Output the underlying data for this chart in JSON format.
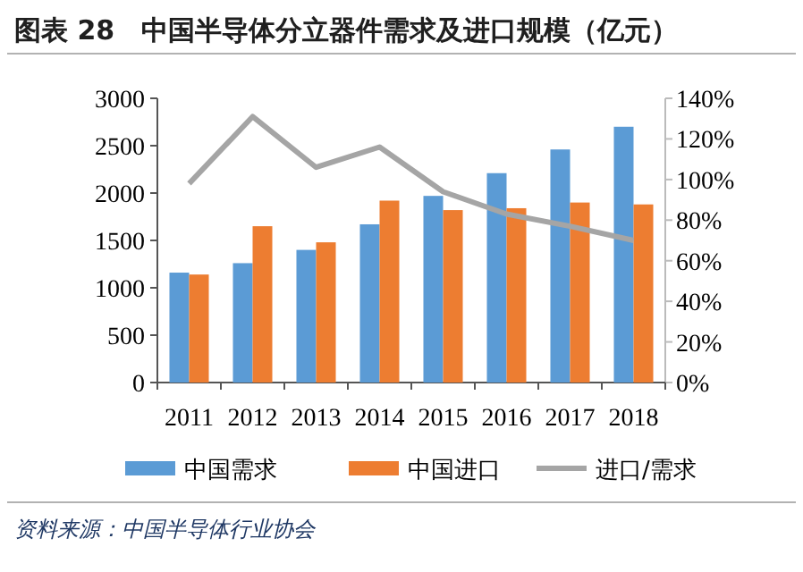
{
  "chart_data": {
    "type": "bar",
    "title": "图表 28　中国半导体分立器件需求及进口规模（亿元）",
    "annotations": [
      "资料来源：中国半导体行业协会"
    ],
    "categories": [
      "2011",
      "2012",
      "2013",
      "2014",
      "2015",
      "2016",
      "2017",
      "2018"
    ],
    "series": [
      {
        "name": "中国需求",
        "color": "#5b9bd5",
        "values": [
          1160,
          1260,
          1400,
          1670,
          1970,
          2210,
          2460,
          2700
        ]
      },
      {
        "name": "中国进口",
        "color": "#ed7d31",
        "values": [
          1140,
          1650,
          1480,
          1920,
          1820,
          1840,
          1900,
          1880
        ]
      },
      {
        "name": "进口/需求",
        "type": "line",
        "axis": "y2",
        "color": "#a5a5a5",
        "values": [
          98,
          131,
          106,
          116,
          94,
          83,
          77,
          70
        ]
      }
    ],
    "ylim": [
      0,
      3000
    ],
    "yticks": [
      0,
      500,
      1000,
      1500,
      2000,
      2500,
      3000
    ],
    "y2lim": [
      0,
      140
    ],
    "y2ticks": [
      {
        "value": 0,
        "label": "0%"
      },
      {
        "value": 20,
        "label": "20%"
      },
      {
        "value": 40,
        "label": "40%"
      },
      {
        "value": 60,
        "label": "60%"
      },
      {
        "value": 80,
        "label": "80%"
      },
      {
        "value": 100,
        "label": "100%"
      },
      {
        "value": 120,
        "label": "120%"
      },
      {
        "value": 140,
        "label": "140%"
      }
    ],
    "legend": "bottom"
  }
}
